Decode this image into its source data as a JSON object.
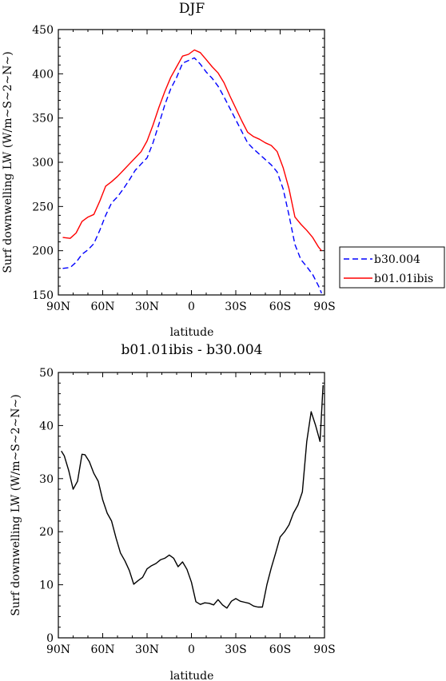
{
  "chart_data": [
    {
      "type": "line",
      "title": "DJF",
      "xlabel": "latitude",
      "ylabel": "Surf downwelling LW (W/m~S~2~N~)",
      "x_ticks": [
        "90N",
        "60N",
        "30N",
        "0",
        "30S",
        "60S",
        "90S"
      ],
      "y_ticks": [
        "150",
        "200",
        "250",
        "300",
        "350",
        "400",
        "450"
      ],
      "xlim": [
        90,
        -90
      ],
      "ylim": [
        150,
        450
      ],
      "grid": false,
      "legend": "outside-right",
      "x": [
        87,
        82,
        78,
        74,
        70,
        66,
        62,
        58,
        54,
        50,
        46,
        42,
        38,
        34,
        30,
        26,
        22,
        18,
        14,
        10,
        6,
        2,
        -2,
        -6,
        -10,
        -14,
        -18,
        -22,
        -26,
        -30,
        -34,
        -38,
        -42,
        -46,
        -50,
        -54,
        -58,
        -62,
        -66,
        -70,
        -74,
        -78,
        -82,
        -86,
        -88
      ],
      "series": [
        {
          "name": "b30.004",
          "color": "#0000ff",
          "dash": "dashed",
          "values": [
            180,
            181,
            187,
            196,
            201,
            208,
            223,
            240,
            254,
            261,
            270,
            280,
            291,
            298,
            305,
            322,
            343,
            365,
            383,
            396,
            412,
            415,
            418,
            411,
            402,
            395,
            386,
            374,
            361,
            348,
            335,
            322,
            315,
            309,
            303,
            297,
            289,
            270,
            240,
            207,
            190,
            182,
            173,
            160,
            152
          ]
        },
        {
          "name": "b01.01ibis",
          "color": "#ff0000",
          "dash": "solid",
          "values": [
            215,
            214,
            220,
            233,
            238,
            241,
            256,
            273,
            278,
            284,
            291,
            298,
            305,
            312,
            324,
            342,
            362,
            380,
            396,
            408,
            420,
            422,
            427,
            424,
            416,
            408,
            401,
            390,
            375,
            361,
            347,
            334,
            329,
            326,
            322,
            319,
            312,
            294,
            270,
            238,
            230,
            223,
            215,
            204,
            200
          ]
        }
      ]
    },
    {
      "type": "line",
      "title": "b01.01ibis - b30.004",
      "xlabel": "latitude",
      "ylabel": "Surf downwelling LW (W/m~S~2~N~)",
      "x_ticks": [
        "90N",
        "60N",
        "30N",
        "0",
        "30S",
        "60S",
        "90S"
      ],
      "y_ticks": [
        "0",
        "10",
        "20",
        "30",
        "40",
        "50"
      ],
      "xlim": [
        90,
        -90
      ],
      "ylim": [
        0,
        50
      ],
      "grid": false,
      "x": [
        88,
        86,
        83,
        80,
        77,
        74,
        72,
        69,
        66,
        63,
        60,
        57,
        54,
        51,
        48,
        45,
        42,
        39,
        36,
        33,
        30,
        27,
        24,
        21,
        18,
        15,
        12,
        9,
        6,
        3,
        0,
        -3,
        -6,
        -9,
        -12,
        -15,
        -18,
        -21,
        -24,
        -27,
        -30,
        -33,
        -36,
        -39,
        -42,
        -45,
        -48,
        -51,
        -54,
        -57,
        -60,
        -63,
        -66,
        -69,
        -72,
        -75,
        -78,
        -81,
        -84,
        -87,
        -89
      ],
      "series": [
        {
          "color": "#000000",
          "values": [
            35.2,
            34.3,
            31.5,
            28.0,
            29.5,
            34.6,
            34.5,
            33.2,
            31.0,
            29.5,
            26.0,
            23.5,
            22.0,
            18.8,
            16.0,
            14.5,
            12.7,
            10.1,
            10.8,
            11.4,
            13.0,
            13.6,
            14.0,
            14.7,
            15.0,
            15.6,
            15.0,
            13.4,
            14.3,
            12.9,
            10.5,
            6.8,
            6.3,
            6.6,
            6.5,
            6.2,
            7.2,
            6.2,
            5.6,
            6.9,
            7.4,
            6.9,
            6.7,
            6.5,
            6.0,
            5.8,
            5.8,
            10.0,
            13.2,
            16.0,
            19.0,
            20.0,
            21.3,
            23.5,
            25.0,
            27.5,
            37.0,
            42.6,
            40.0,
            37.0,
            47.6
          ]
        }
      ]
    }
  ]
}
